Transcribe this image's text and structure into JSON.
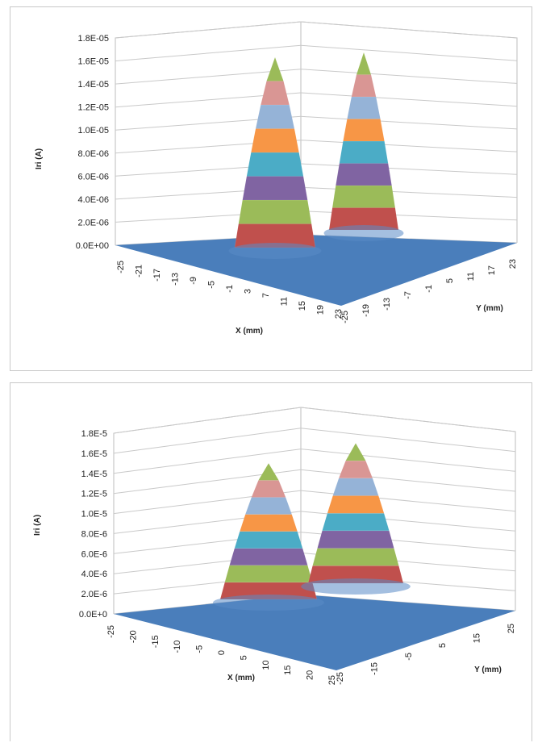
{
  "colors": {
    "floor": "#4a7ebb",
    "bands": [
      "#c0504d",
      "#9bbb59",
      "#8064a2",
      "#4bacc6",
      "#f79646",
      "#95b3d7",
      "#d99694",
      "#9bbb59"
    ]
  },
  "chart_data": [
    {
      "type": "surface3d",
      "title": "",
      "zlabel": "Iri (A)",
      "xlabel": "X (mm)",
      "ylabel": "Y (mm)",
      "z_ticks": [
        "0.0E+00",
        "2.0E-06",
        "4.0E-06",
        "6.0E-06",
        "8.0E-06",
        "1.0E-05",
        "1.2E-05",
        "1.4E-05",
        "1.6E-05",
        "1.8E-05"
      ],
      "x_ticks": [
        "-25",
        "-21",
        "-17",
        "-13",
        "-9",
        "-5",
        "-1",
        "3",
        "7",
        "11",
        "15",
        "19",
        "23"
      ],
      "y_ticks": [
        "-25",
        "-19",
        "-13",
        "-7",
        "-1",
        "5",
        "11",
        "17",
        "23"
      ],
      "zlim": [
        0,
        1.8e-05
      ],
      "grid": true,
      "peaks": [
        {
          "peak_value": 1.7e-05,
          "x_center_mm": 5,
          "y_center_mm": -13
        },
        {
          "peak_value": 1.7e-05,
          "x_center_mm": 5,
          "y_center_mm": 11
        }
      ]
    },
    {
      "type": "surface3d",
      "title": "",
      "zlabel": "Iri (A)",
      "xlabel": "X (mm)",
      "ylabel": "Y (mm)",
      "z_ticks": [
        "0.0E+0",
        "2.0E-6",
        "4.0E-6",
        "6.0E-6",
        "8.0E-6",
        "1.0E-5",
        "1.2E-5",
        "1.4E-5",
        "1.6E-5",
        "1.8E-5"
      ],
      "x_ticks": [
        "-25",
        "-20",
        "-15",
        "-10",
        "-5",
        "0",
        "5",
        "10",
        "15",
        "20",
        "25"
      ],
      "y_ticks": [
        "-25",
        "-15",
        "-5",
        "5",
        "15",
        "25"
      ],
      "zlim": [
        0,
        1.8e-05
      ],
      "grid": true,
      "peaks": [
        {
          "peak_value": 1.5e-05,
          "x_center_mm": 5,
          "y_center_mm": -15
        },
        {
          "peak_value": 1.7e-05,
          "x_center_mm": 5,
          "y_center_mm": 5
        }
      ]
    }
  ]
}
